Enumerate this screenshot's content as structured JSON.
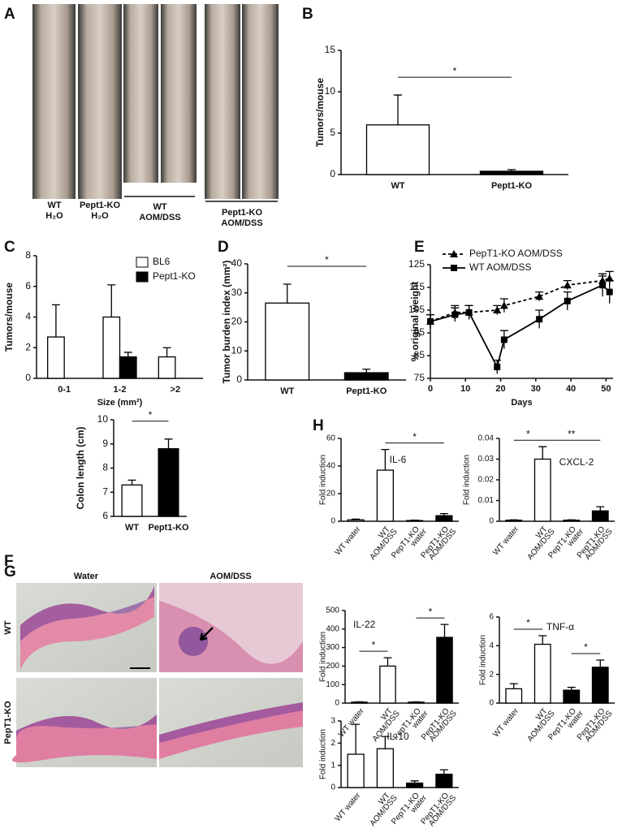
{
  "panel_labels": [
    "A",
    "B",
    "C",
    "D",
    "E",
    "F",
    "G",
    "H"
  ],
  "photo_labels": [
    [
      "WT",
      "H₂O"
    ],
    [
      "Pept1-KO",
      "H₂O"
    ],
    [
      "WT",
      "AOM/DSS"
    ],
    [
      "Pept1-KO",
      "AOM/DSS"
    ]
  ],
  "histology": {
    "columns": [
      "Water",
      "AOM/DSS"
    ],
    "rows": [
      "WT",
      "PepT1-KO"
    ]
  },
  "chart_data": [
    {
      "type": "bar",
      "ylabel": "Tumors/mouse",
      "categories": [
        "WT",
        "Pept1-KO"
      ],
      "values": [
        6,
        0.4
      ],
      "errors": [
        3.6,
        0.2
      ],
      "colors": [
        "#ffffff",
        "#000000"
      ],
      "ylim": [
        0,
        15
      ],
      "yticks": [
        0,
        5,
        10,
        15
      ],
      "significance": [
        {
          "from": 0,
          "to": 1,
          "label": "*"
        }
      ]
    },
    {
      "type": "bar",
      "ylabel": "Tumors/mouse",
      "xlabel": "Size (mm²)",
      "categories": [
        "0-1",
        "1-2",
        ">2"
      ],
      "series": [
        {
          "name": "BL6",
          "color": "#ffffff",
          "values": [
            2.7,
            4.0,
            1.4
          ],
          "errors": [
            2.1,
            2.1,
            0.6
          ]
        },
        {
          "name": "Pept1-KO",
          "color": "#000000",
          "values": [
            0,
            1.4,
            0
          ],
          "errors": [
            0,
            0.3,
            0
          ]
        }
      ],
      "ylim": [
        0,
        8
      ],
      "yticks": [
        0,
        2,
        4,
        6,
        8
      ],
      "legend": "top-right"
    },
    {
      "type": "bar",
      "ylabel": "Tumor burden index (mm²)",
      "categories": [
        "WT",
        "Pept1-KO"
      ],
      "values": [
        26.5,
        2.5
      ],
      "errors": [
        6.5,
        1.2
      ],
      "colors": [
        "#ffffff",
        "#000000"
      ],
      "ylim": [
        0,
        40
      ],
      "yticks": [
        0,
        10,
        20,
        30,
        40
      ],
      "significance": [
        {
          "from": 0,
          "to": 1,
          "label": "*"
        }
      ]
    },
    {
      "type": "line",
      "ylabel": "% original weight",
      "xlabel": "Days",
      "x": [
        0,
        7,
        11,
        19,
        21,
        31,
        39,
        49,
        51
      ],
      "series": [
        {
          "name": "PepT1-KO AOM/DSS",
          "color": "#000000",
          "marker": "triangle",
          "dash": true,
          "values": [
            100,
            104,
            104,
            105,
            107,
            111,
            116,
            118,
            119
          ],
          "errors": [
            3,
            3,
            3,
            2,
            3,
            2,
            2,
            2,
            3
          ]
        },
        {
          "name": "WT AOM/DSS",
          "color": "#000000",
          "marker": "square",
          "dash": false,
          "values": [
            100,
            103,
            104,
            80,
            92,
            101,
            109,
            116,
            113
          ],
          "errors": [
            3,
            3,
            3,
            3,
            4,
            4,
            4,
            5,
            5
          ]
        }
      ],
      "xlim": [
        0,
        52
      ],
      "xticks": [
        0,
        10,
        20,
        30,
        40,
        50
      ],
      "ylim": [
        75,
        125
      ],
      "yticks": [
        75,
        85,
        95,
        105,
        115,
        125
      ],
      "legend": "top"
    },
    {
      "type": "bar",
      "ylabel": "Colon length (cm)",
      "categories": [
        "WT",
        "Pept1-KO"
      ],
      "values": [
        7.3,
        8.8
      ],
      "errors": [
        0.2,
        0.4
      ],
      "colors": [
        "#ffffff",
        "#000000"
      ],
      "ylim": [
        6,
        10
      ],
      "yticks": [
        6,
        7,
        8,
        9,
        10
      ],
      "significance": [
        {
          "from": 0,
          "to": 1,
          "label": "*"
        }
      ]
    },
    {
      "type": "bar",
      "title": "IL-6",
      "ylabel": "Fold induction",
      "categories": [
        [
          "WT water"
        ],
        [
          "WT",
          "AOM/DSS"
        ],
        [
          "PepT1-KO",
          "water"
        ],
        [
          "PepT1-KO",
          "AOM/DSS"
        ]
      ],
      "values": [
        1,
        37,
        0.5,
        4
      ],
      "errors": [
        0.5,
        15,
        0.3,
        1.5
      ],
      "colors": [
        "#ffffff",
        "#ffffff",
        "#000000",
        "#000000"
      ],
      "ylim": [
        0,
        60
      ],
      "yticks": [
        0,
        20,
        40,
        60
      ],
      "significance": [
        {
          "from": 1,
          "to": 3,
          "label": "*"
        }
      ]
    },
    {
      "type": "bar",
      "title": "CXCL-2",
      "ylabel": "Fold induction",
      "categories": [
        [
          "WT water"
        ],
        [
          "WT",
          "AOM/DSS"
        ],
        [
          "PepT1-KO",
          "water"
        ],
        [
          "PepT1-KO",
          "AOM/DSS"
        ]
      ],
      "values": [
        0.0005,
        0.03,
        0.0005,
        0.005
      ],
      "errors": [
        0.0002,
        0.006,
        0.0002,
        0.002
      ],
      "colors": [
        "#ffffff",
        "#ffffff",
        "#000000",
        "#000000"
      ],
      "ylim": [
        0,
        0.04
      ],
      "yticks": [
        0,
        0.01,
        0.02,
        0.03,
        0.04
      ],
      "significance": [
        {
          "from": 0,
          "to": 1,
          "label": "*"
        },
        {
          "from": 1,
          "to": 3,
          "label": "**"
        }
      ]
    },
    {
      "type": "bar",
      "title": "IL-22",
      "ylabel": "Fold induction",
      "categories": [
        [
          "WT water"
        ],
        [
          "WT",
          "AOM/DSS"
        ],
        [
          "PepT1-KO",
          "water"
        ],
        [
          "PepT1-KO",
          "AOM/DSS"
        ]
      ],
      "values": [
        5,
        200,
        5,
        355
      ],
      "errors": [
        2,
        45,
        2,
        70
      ],
      "colors": [
        "#ffffff",
        "#ffffff",
        "#000000",
        "#000000"
      ],
      "ylim": [
        0,
        500
      ],
      "yticks": [
        0,
        100,
        200,
        300,
        400,
        500
      ],
      "significance": [
        {
          "from": 0,
          "to": 1,
          "label": "*"
        },
        {
          "from": 2,
          "to": 3,
          "label": "*"
        }
      ]
    },
    {
      "type": "bar",
      "title": "TNF-α",
      "ylabel": "Fold induction",
      "categories": [
        [
          "WT water"
        ],
        [
          "WT",
          "AOM/DSS"
        ],
        [
          "PepT1-KO",
          "water"
        ],
        [
          "PepT1-KO",
          "AOM/DSS"
        ]
      ],
      "values": [
        1,
        4.1,
        0.9,
        2.5
      ],
      "errors": [
        0.35,
        0.6,
        0.2,
        0.5
      ],
      "colors": [
        "#ffffff",
        "#ffffff",
        "#000000",
        "#000000"
      ],
      "ylim": [
        0,
        6
      ],
      "yticks": [
        0,
        2,
        4,
        6
      ],
      "significance": [
        {
          "from": 0,
          "to": 1,
          "label": "*"
        },
        {
          "from": 2,
          "to": 3,
          "label": "*"
        }
      ]
    },
    {
      "type": "bar",
      "title": "IL-10",
      "ylabel": "Fold induction",
      "categories": [
        [
          "WT water"
        ],
        [
          "WT",
          "AOM/DSS"
        ],
        [
          "PepT1-KO",
          "water"
        ],
        [
          "PepT1-KO",
          "AOM/DSS"
        ]
      ],
      "values": [
        1.5,
        1.75,
        0.2,
        0.6
      ],
      "errors": [
        1.35,
        0.55,
        0.1,
        0.2
      ],
      "colors": [
        "#ffffff",
        "#ffffff",
        "#000000",
        "#000000"
      ],
      "ylim": [
        0,
        3
      ],
      "yticks": [
        0,
        1,
        2,
        3
      ]
    }
  ]
}
